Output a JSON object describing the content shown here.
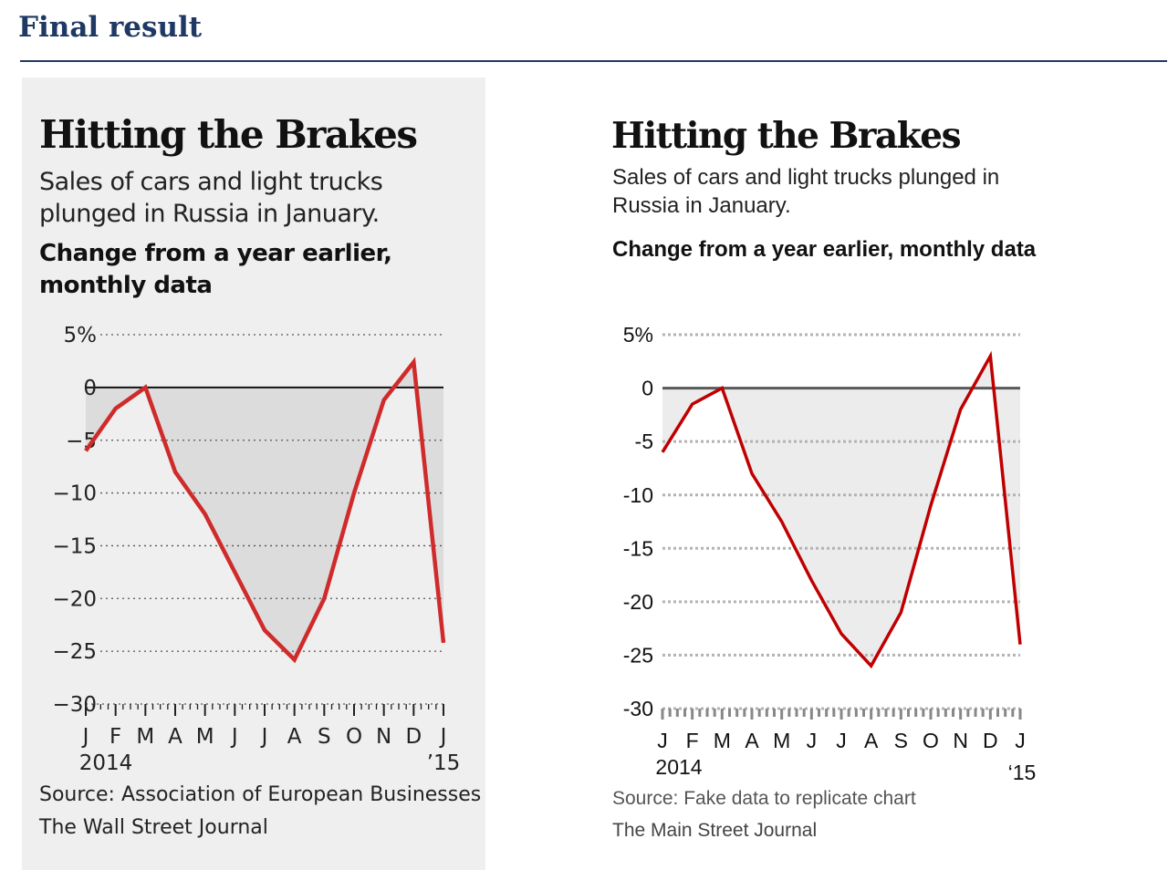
{
  "header": {
    "title": "Final result"
  },
  "charts": [
    {
      "title": "Hitting the Brakes",
      "subtitle": "Sales of cars and light trucks plunged in Russia in January.",
      "label": "Change from a year earlier, monthly data",
      "source": "Source: Association of European Businesses",
      "publisher": "The Wall Street Journal"
    },
    {
      "title": "Hitting the Brakes",
      "subtitle": "Sales of cars and light trucks plunged in Russia in January.",
      "label": "Change from a year earlier, monthly data",
      "source": "Source: Fake data to replicate chart",
      "publisher": "The Main Street Journal"
    }
  ],
  "chart_data": [
    {
      "type": "area",
      "title": "Hitting the Brakes",
      "categories": [
        "J",
        "F",
        "M",
        "A",
        "M",
        "J",
        "J",
        "A",
        "S",
        "O",
        "N",
        "D",
        "J"
      ],
      "year_labels": {
        "start": "2014",
        "end": "’15"
      },
      "values": [
        -6,
        -2,
        0,
        -8,
        -12,
        -17.5,
        -23,
        -25.8,
        -20,
        -10,
        -1.2,
        2.4,
        -24.2
      ],
      "ylim": [
        -30,
        5
      ],
      "yticks": [
        5,
        0,
        -5,
        -10,
        -15,
        -20,
        -25,
        -30
      ],
      "ytick_labels": [
        "5%",
        "0",
        "−5",
        "−10",
        "−15",
        "−20",
        "−25",
        "−30"
      ],
      "grid": true,
      "colors": {
        "line": "#cf2b2b",
        "fill": "#dcdcdc",
        "zero": "#111111",
        "grid": "#555555",
        "background": "#efefef"
      }
    },
    {
      "type": "area",
      "title": "Hitting the Brakes",
      "categories": [
        "J",
        "F",
        "M",
        "A",
        "M",
        "J",
        "J",
        "A",
        "S",
        "O",
        "N",
        "D",
        "J"
      ],
      "year_labels": {
        "start": "2014",
        "end": "‘15"
      },
      "values": [
        -6,
        -1.5,
        0,
        -8,
        -12.5,
        -18,
        -23,
        -26,
        -21,
        -11,
        -2,
        3,
        -24
      ],
      "ylim": [
        -30,
        5
      ],
      "yticks": [
        5,
        0,
        -5,
        -10,
        -15,
        -20,
        -25,
        -30
      ],
      "ytick_labels": [
        "5%",
        "0",
        "-5",
        "-10",
        "-15",
        "-20",
        "-25",
        "-30"
      ],
      "grid": true,
      "colors": {
        "line": "#c00000",
        "fill": "#ececec",
        "zero": "#595959",
        "grid": "#b3b3b3",
        "background": "#ffffff"
      }
    }
  ]
}
